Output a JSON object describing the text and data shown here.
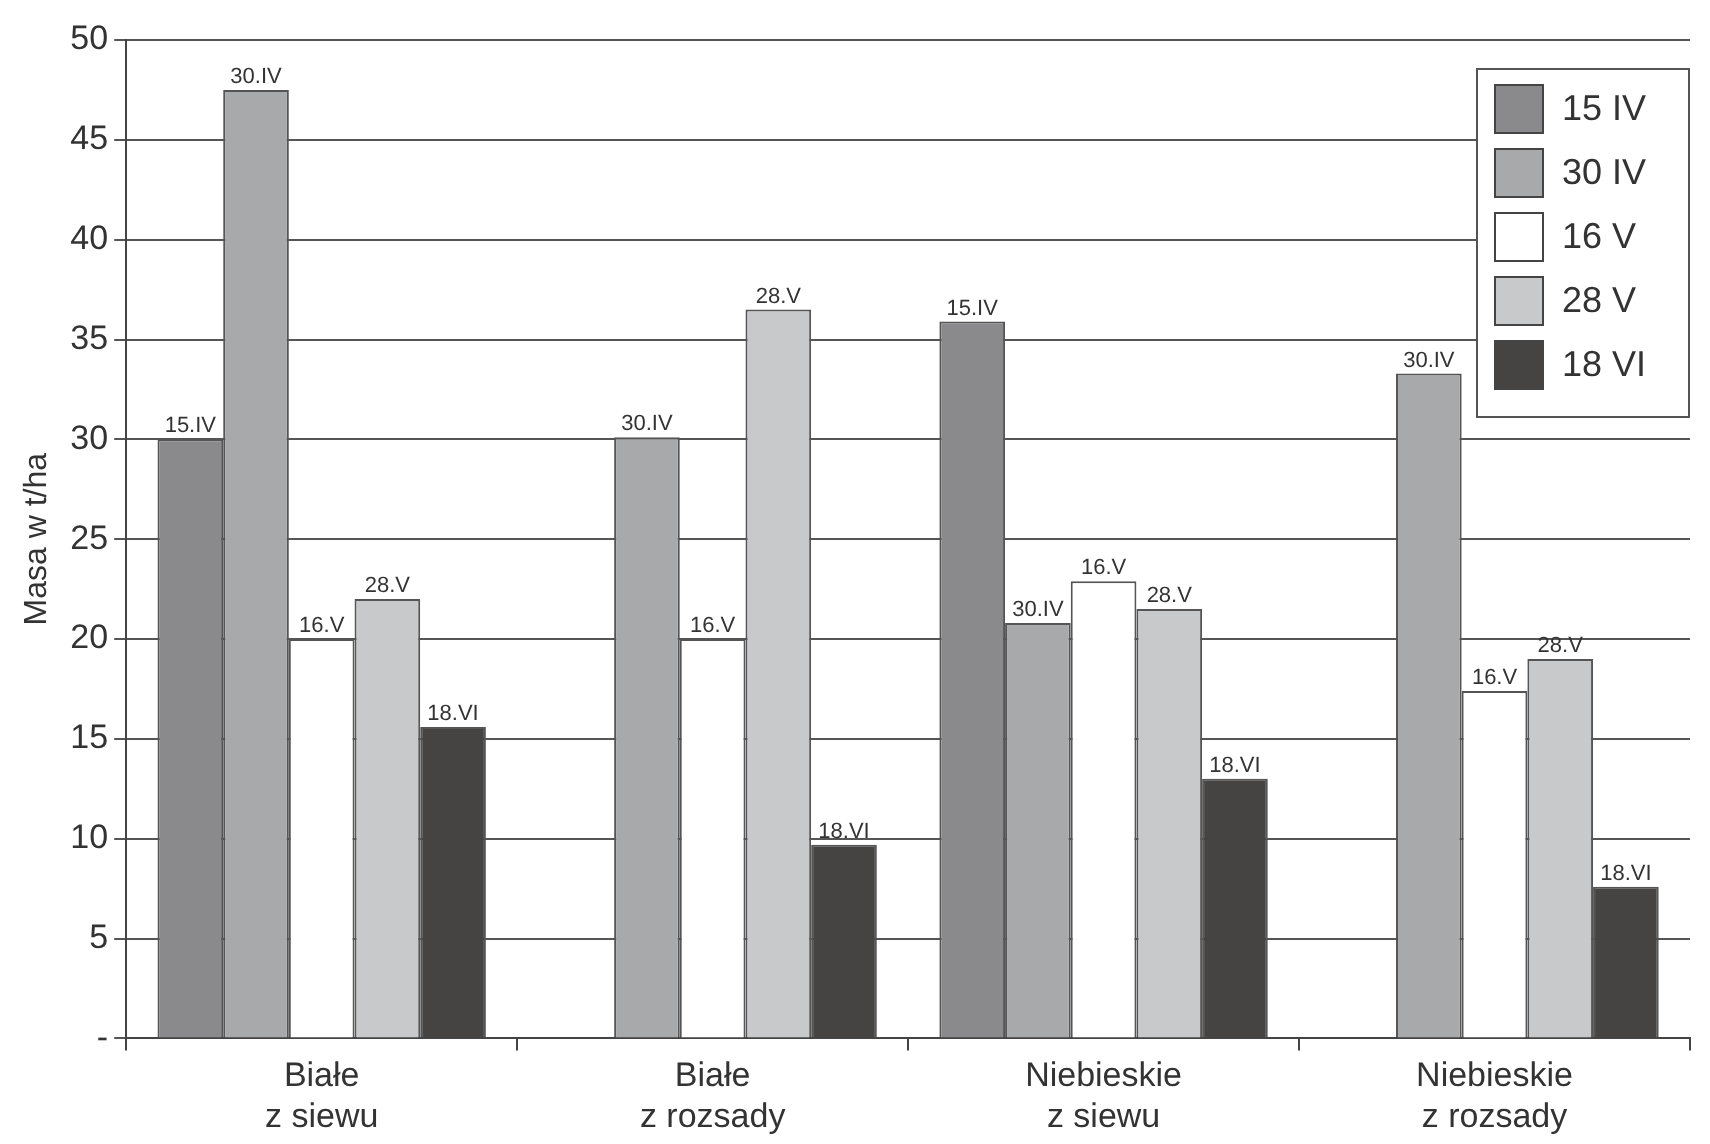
{
  "chart_data": {
    "type": "bar",
    "ylabel": "Masa w t/ha",
    "categories": [
      "Białe z siewu",
      "Białe z rozsady",
      "Niebieskie z siewu",
      "Niebieskie z rozsady"
    ],
    "series": [
      {
        "name": "15 IV",
        "color": "#8a8a8c",
        "values": [
          30,
          null,
          35.9,
          null
        ]
      },
      {
        "name": "30 IV",
        "color": "#a8a9ab",
        "values": [
          47.5,
          30.1,
          20.8,
          33.3
        ]
      },
      {
        "name": "16 V",
        "color": "#ffffff",
        "values": [
          20,
          20,
          22.9,
          17.4
        ]
      },
      {
        "name": "28 V",
        "color": "#c8c9cb",
        "values": [
          22,
          36.5,
          21.5,
          19
        ]
      },
      {
        "name": "18 VI",
        "color": "#454443",
        "values": [
          15.6,
          9.7,
          13,
          7.6
        ]
      }
    ],
    "annotations": [
      "15.IV",
      "30.IV",
      "16.V",
      "28.V",
      "18.VI",
      "30.IV",
      "16.V",
      "28.V",
      "18.VI",
      "15.IV",
      "30.IV",
      "16.V",
      "28.V",
      "18.VI",
      "30.IV",
      "16.V",
      "28.V",
      "18.VI"
    ],
    "ylim": [
      0,
      50
    ],
    "yticks": [
      {
        "value": 0,
        "label": "-"
      },
      5,
      10,
      15,
      20,
      25,
      30,
      35,
      40,
      45,
      50
    ],
    "grid": "y",
    "legend": "top right"
  }
}
